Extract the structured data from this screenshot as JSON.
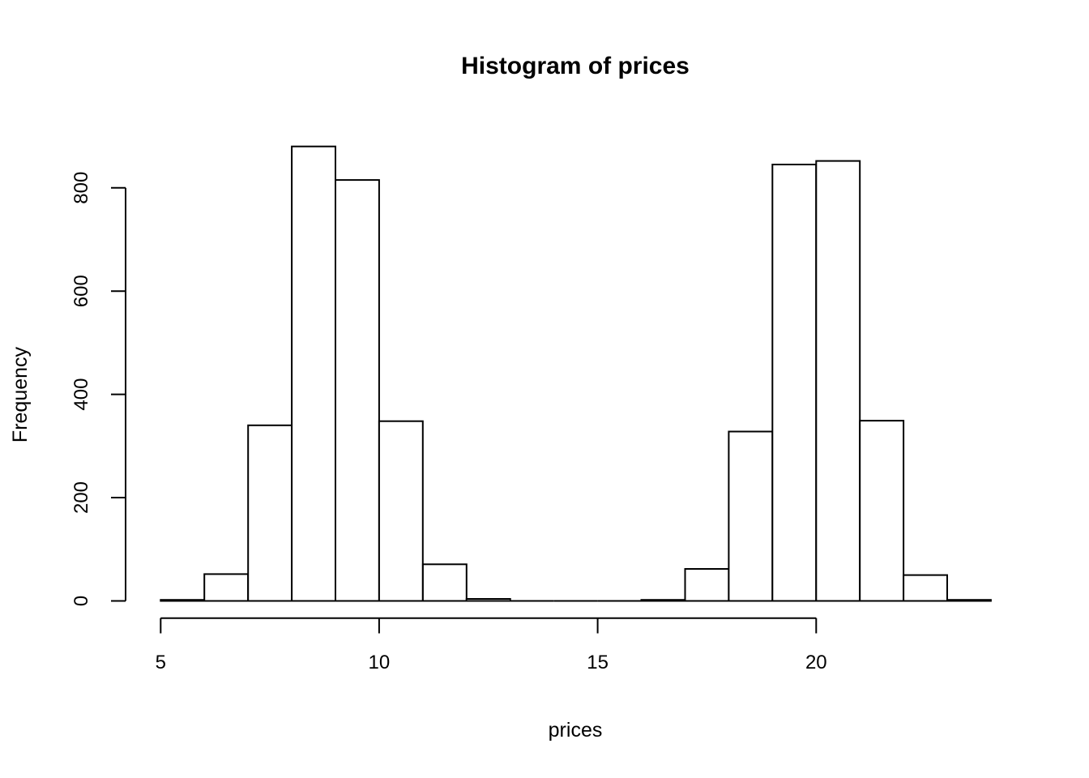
{
  "chart_data": {
    "type": "bar",
    "subtype": "histogram",
    "title": "Histogram of prices",
    "xlabel": "prices",
    "ylabel": "Frequency",
    "bin_start": 5,
    "bin_width": 1,
    "bin_edges": [
      5,
      6,
      7,
      8,
      9,
      10,
      11,
      12,
      13,
      14,
      15,
      16,
      17,
      18,
      19,
      20,
      21,
      22,
      23,
      24
    ],
    "counts": [
      2,
      52,
      340,
      880,
      815,
      348,
      71,
      4,
      0,
      0,
      0,
      2,
      62,
      328,
      845,
      852,
      349,
      50,
      2
    ],
    "x_ticks": [
      5,
      10,
      15,
      20
    ],
    "y_ticks": [
      0,
      200,
      400,
      600,
      800
    ],
    "x_axis_line_range": [
      5,
      20
    ],
    "y_axis_line_range": [
      0,
      800
    ],
    "xlim": [
      5,
      24
    ],
    "ylim": [
      0,
      880
    ],
    "grid": "off",
    "legend": "none",
    "bar_fill": "#ffffff",
    "bar_stroke": "#000000",
    "axis_color": "#000000",
    "background_color": "#ffffff"
  }
}
